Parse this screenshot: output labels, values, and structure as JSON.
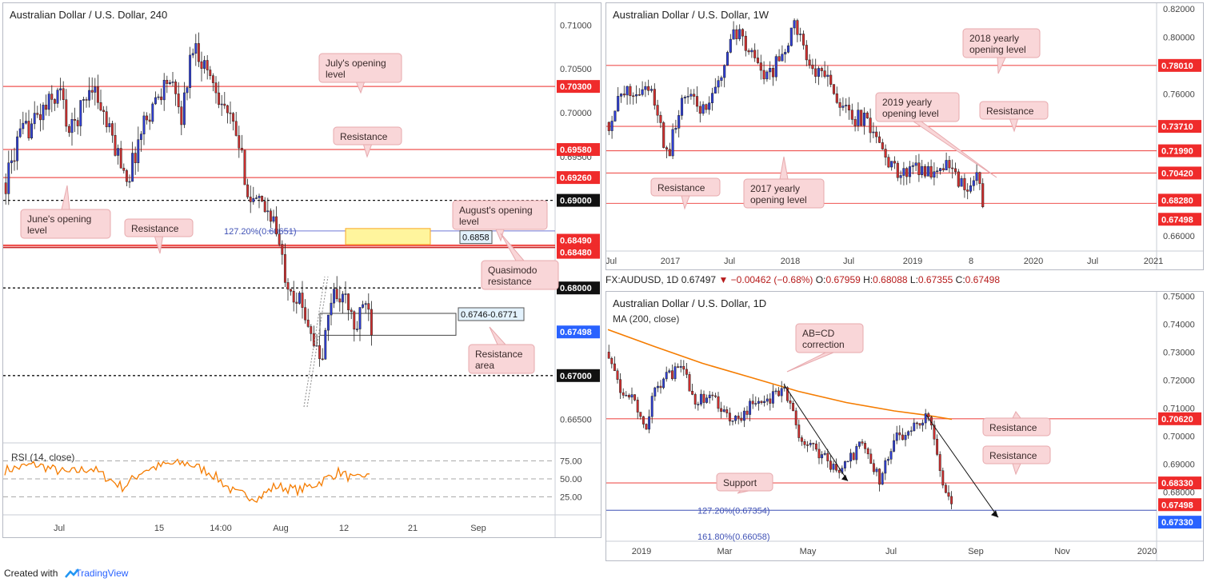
{
  "chart_data": [
    {
      "type": "candlestick",
      "title": "Australian Dollar / U.S. Dollar, 240",
      "x_ticks": [
        "Jul",
        "15",
        "14:00",
        "Aug",
        "12",
        "21",
        "Sep"
      ],
      "y_ticks": [
        "0.71000",
        "0.70500",
        "0.70000",
        "0.69500",
        "0.66500"
      ],
      "ylim": [
        0.6625,
        0.7125
      ],
      "current_price": 0.67498,
      "levels": [
        {
          "label": "0.70300",
          "value": 0.703,
          "style": "red",
          "tag": "red"
        },
        {
          "label": "0.69580",
          "value": 0.6958,
          "style": "red",
          "tag": "red"
        },
        {
          "label": "0.69260",
          "value": 0.6926,
          "style": "red",
          "tag": "red"
        },
        {
          "label": "0.69000",
          "value": 0.69,
          "style": "dotted",
          "tag": "black"
        },
        {
          "label": "0.68490",
          "value": 0.6849,
          "style": "red",
          "tag": "red"
        },
        {
          "label": "0.68480",
          "value": 0.6848,
          "style": "red",
          "tag": "red"
        },
        {
          "label": "0.68000",
          "value": 0.68,
          "style": "dotted",
          "tag": "black"
        },
        {
          "label": "0.67498",
          "value": 0.67498,
          "style": "none",
          "tag": "blue"
        },
        {
          "label": "0.67000",
          "value": 0.67,
          "style": "dotted",
          "tag": "black"
        }
      ],
      "fib_label": "127.20%(0.68651)",
      "fib_value": 0.68651,
      "zone_labels": [
        "0.6858",
        "0.6746-0.6771"
      ],
      "annotations": [
        "July's opening level",
        "Resistance",
        "June's opening level",
        "Resistance",
        "August's opening level",
        "Quasimodo resistance",
        "Resistance area"
      ],
      "rsi": {
        "label": "RSI (14, close)",
        "ticks": [
          "75.00",
          "50.00",
          "25.00"
        ]
      }
    },
    {
      "type": "candlestick",
      "title": "Australian Dollar / U.S. Dollar, 1W",
      "x_ticks": [
        "Jul",
        "2017",
        "Jul",
        "2018",
        "Jul",
        "2019",
        "8",
        "2020",
        "Jul",
        "2021"
      ],
      "y_ticks": [
        "0.82000",
        "0.80000",
        "0.76000",
        "0.66000"
      ],
      "ylim": [
        0.652,
        0.824
      ],
      "current_price": 0.67498,
      "levels": [
        {
          "label": "0.78010",
          "value": 0.7801,
          "tag": "red"
        },
        {
          "label": "0.73710",
          "value": 0.7371,
          "tag": "red"
        },
        {
          "label": "0.71990",
          "value": 0.7199,
          "tag": "red"
        },
        {
          "label": "0.70420",
          "value": 0.7042,
          "tag": "red"
        },
        {
          "label": "0.68280",
          "value": 0.6828,
          "tag": "red"
        },
        {
          "label": "0.67498",
          "value": 0.67498,
          "tag": "red"
        }
      ],
      "annotations": [
        "2018 yearly opening level",
        "2019 yearly opening level",
        "Resistance",
        "Resistance",
        "2017 yearly opening level"
      ]
    },
    {
      "type": "candlestick",
      "title": "Australian Dollar / U.S. Dollar, 1D",
      "ohlc": {
        "symbol": "FX:AUDUSD, 1D",
        "last": "0.67497",
        "change": "−0.00462 (−0.68%)",
        "open": "0.67959",
        "high": "0.68088",
        "low": "0.67355",
        "close": "0.67498"
      },
      "ma_label": "MA (200, close)",
      "x_ticks": [
        "2019",
        "Mar",
        "May",
        "Jul",
        "Sep",
        "Nov",
        "2020"
      ],
      "y_ticks": [
        "0.75000",
        "0.74000",
        "0.73000",
        "0.72000",
        "0.71000",
        "0.70000",
        "0.69000",
        "0.68000"
      ],
      "ylim": [
        0.6645,
        0.7515
      ],
      "current_price": 0.67498,
      "levels": [
        {
          "label": "0.70620",
          "value": 0.7062,
          "tag": "red"
        },
        {
          "label": "0.68330",
          "value": 0.6833,
          "tag": "red"
        },
        {
          "label": "0.67498",
          "value": 0.67498,
          "tag": "red"
        },
        {
          "label": "0.67330",
          "value": 0.6733,
          "tag": "blue"
        }
      ],
      "fib_labels": [
        "127.20%(0.67354)",
        "161.80%(0.66058)"
      ],
      "fib_value": 0.67354,
      "annotations": [
        "AB=CD correction",
        "Resistance",
        "Resistance",
        "Support"
      ]
    }
  ],
  "footer": {
    "created_with": "Created with",
    "brand": "TradingView"
  }
}
